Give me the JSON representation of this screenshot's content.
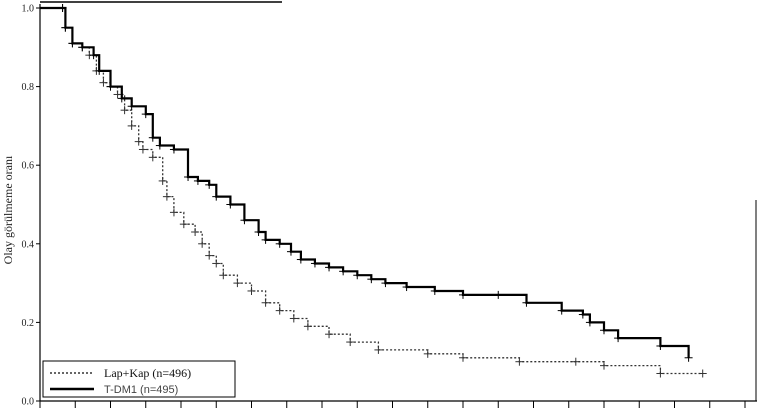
{
  "chart_data": {
    "type": "line",
    "title": "",
    "xlabel": "",
    "ylabel": "Olay görülmeme oranı",
    "ylim": [
      0,
      1.0
    ],
    "yticks": [
      0.0,
      0.2,
      0.4,
      0.6,
      0.8,
      1.0
    ],
    "ytick_labels": [
      "0.0",
      "0.2",
      "0.4",
      "0.6",
      "0.8",
      "1.0"
    ],
    "xlim": [
      0,
      50
    ],
    "xticks": [
      0,
      2.5,
      5,
      7.5,
      10,
      12.5,
      15,
      17.5,
      20,
      22.5,
      25,
      27.5,
      30,
      32.5,
      35,
      37.5,
      40,
      42.5,
      45,
      47.5,
      50
    ],
    "legend_placement": "bottom-left",
    "series": [
      {
        "name": "Lap+Kap (n=496)",
        "style": "dotted",
        "color": "#333333",
        "x": [
          0,
          1.6,
          1.8,
          2.3,
          3.0,
          3.5,
          4.0,
          4.5,
          5.0,
          5.5,
          6.0,
          6.5,
          7.0,
          7.3,
          8.0,
          8.7,
          9.0,
          9.5,
          10.2,
          11.0,
          11.5,
          12.0,
          12.5,
          13.0,
          14.0,
          15.0,
          16.0,
          17.0,
          18.0,
          19.0,
          20.5,
          22.0,
          24.0,
          27.5,
          30.0,
          34.0,
          38.0,
          40.0,
          44.0,
          47.0
        ],
        "y": [
          1.0,
          1.0,
          0.95,
          0.91,
          0.9,
          0.88,
          0.84,
          0.81,
          0.8,
          0.78,
          0.74,
          0.7,
          0.66,
          0.64,
          0.62,
          0.56,
          0.52,
          0.48,
          0.45,
          0.43,
          0.4,
          0.37,
          0.35,
          0.32,
          0.3,
          0.28,
          0.25,
          0.23,
          0.21,
          0.19,
          0.17,
          0.15,
          0.13,
          0.12,
          0.11,
          0.1,
          0.1,
          0.09,
          0.07,
          0.07
        ]
      },
      {
        "name": "T-DM1 (n=495)",
        "style": "solid",
        "color": "#000000",
        "x": [
          0,
          1.6,
          1.8,
          2.3,
          3.0,
          3.8,
          4.2,
          5.0,
          5.8,
          6.5,
          7.5,
          8.0,
          8.5,
          9.5,
          10.5,
          11.2,
          12.0,
          12.5,
          13.5,
          14.5,
          15.5,
          16.0,
          17.0,
          17.8,
          18.5,
          19.5,
          20.5,
          21.5,
          22.5,
          23.5,
          24.5,
          26.0,
          28.0,
          30.0,
          32.5,
          34.5,
          37.0,
          38.5,
          39.0,
          40.0,
          41.0,
          44.0,
          46.0
        ],
        "y": [
          1.0,
          1.0,
          0.95,
          0.91,
          0.9,
          0.88,
          0.84,
          0.8,
          0.77,
          0.75,
          0.73,
          0.67,
          0.65,
          0.64,
          0.57,
          0.56,
          0.55,
          0.52,
          0.5,
          0.46,
          0.43,
          0.41,
          0.4,
          0.38,
          0.36,
          0.35,
          0.34,
          0.33,
          0.32,
          0.31,
          0.3,
          0.29,
          0.28,
          0.27,
          0.27,
          0.25,
          0.23,
          0.22,
          0.2,
          0.18,
          0.16,
          0.14,
          0.11
        ]
      }
    ]
  }
}
